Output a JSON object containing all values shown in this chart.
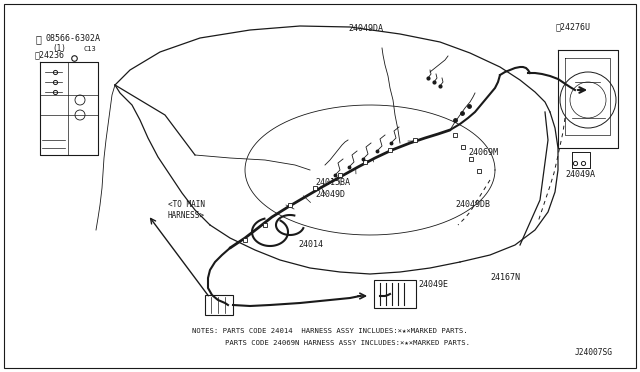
{
  "background_color": "#ffffff",
  "border_color": "#000000",
  "diagram_code": "J24007SG",
  "note_line1": "NOTES: PARTS CODE 24014  HARNESS ASSY INCLUDES:×★×MARKED PARTS.",
  "note_line2": "PARTS CODE 24069N HARNESS ASSY INCLUDES:×★×MARKED PARTS.",
  "lc": "#1a1a1a",
  "fs": 6.0,
  "fs_notes": 5.2,
  "lw_car": 0.9,
  "lw_wire": 1.5,
  "lw_thin": 0.6
}
